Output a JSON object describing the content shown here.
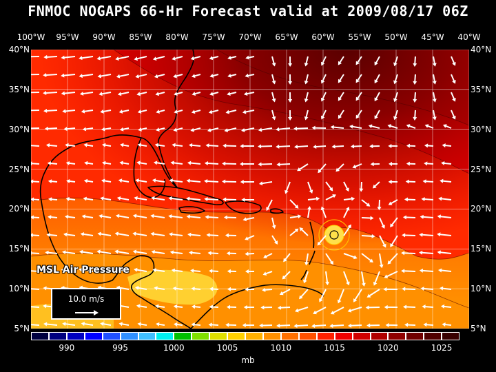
{
  "title": "FNMOC NOGAPS 66-Hr Forecast valid at 2009/08/17 06Z",
  "longitude_labels": [
    "100°W",
    "95°W",
    "90°W",
    "85°W",
    "80°W",
    "75°W",
    "70°W",
    "65°W",
    "60°W",
    "55°W",
    "50°W",
    "45°W",
    "40°W"
  ],
  "latitude_labels": [
    "40°N",
    "35°N",
    "30°N",
    "25°N",
    "20°N",
    "15°N",
    "10°N",
    "5°N"
  ],
  "field_label": "MSL Air Pressure",
  "reference_vector": "10.0 m/s",
  "colorbar": {
    "labels": [
      "990",
      "995",
      "1000",
      "1005",
      "1010",
      "1015",
      "1020",
      "1025"
    ],
    "units": "mb",
    "colors": [
      "#000040",
      "#000080",
      "#0000c0",
      "#0000ff",
      "#2050ff",
      "#3090ff",
      "#40c0ff",
      "#00f0f0",
      "#00c000",
      "#80e000",
      "#e0e000",
      "#ffd000",
      "#ffb000",
      "#ff9000",
      "#ff7000",
      "#ff5000",
      "#ff2000",
      "#f00000",
      "#d00000",
      "#b00000",
      "#900000",
      "#700000",
      "#500000",
      "#380000"
    ]
  },
  "map": {
    "lon_range": [
      -100,
      -40
    ],
    "lat_range": [
      5,
      40
    ],
    "storm_center": {
      "lon": -58.7,
      "lat": 16.6
    }
  },
  "colors": {
    "background": "#000000",
    "grid": "#ffffff",
    "coast": "#000000",
    "arrows": "#ffffff"
  }
}
